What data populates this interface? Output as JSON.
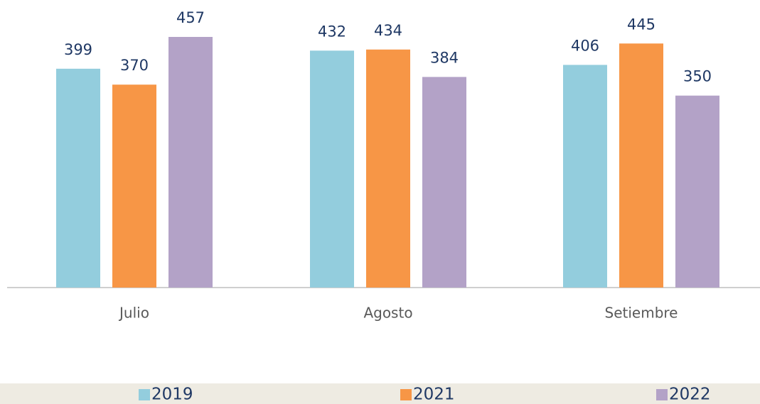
{
  "chart_data": {
    "type": "bar",
    "categories": [
      "Julio",
      "Agosto",
      "Setiembre"
    ],
    "series": [
      {
        "name": "2019",
        "color": "#93cddd",
        "values": [
          399,
          432,
          406
        ]
      },
      {
        "name": "2021",
        "color": "#f79646",
        "values": [
          370,
          434,
          445
        ]
      },
      {
        "name": "2022",
        "color": "#b3a2c7",
        "values": [
          457,
          384,
          350
        ]
      }
    ],
    "legend": "bottom"
  }
}
